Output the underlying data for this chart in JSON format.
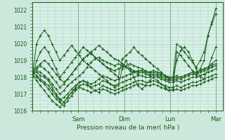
{
  "xlabel": "Pression niveau de la mer( hPa )",
  "bg_color": "#cce8dc",
  "plot_bg_color": "#d8f0e8",
  "line_color": "#1a5e1a",
  "grid_color": "#a8ccb8",
  "ylim": [
    1016.0,
    1022.5
  ],
  "xlim": [
    0,
    1.04
  ],
  "yticks": [
    1016,
    1017,
    1018,
    1019,
    1020,
    1021,
    1022
  ],
  "day_labels": [
    "Sam",
    "Dim",
    "Lun",
    "Mar"
  ],
  "day_positions": [
    0.25,
    0.5,
    0.75,
    1.0
  ],
  "num_points": 48,
  "series": [
    [
      1018.2,
      1018.3,
      1018.1,
      1018.0,
      1017.8,
      1017.4,
      1017.0,
      1016.7,
      1016.5,
      1016.8,
      1017.1,
      1017.3,
      1017.5,
      1017.6,
      1017.5,
      1017.4,
      1017.5,
      1017.6,
      1017.8,
      1017.7,
      1017.6,
      1017.5,
      1017.6,
      1017.7,
      1017.8,
      1017.9,
      1018.0,
      1018.1,
      1018.1,
      1018.0,
      1018.0,
      1018.1,
      1018.0,
      1017.9,
      1017.8,
      1017.7,
      1017.7,
      1017.8,
      1017.7,
      1017.8,
      1017.9,
      1018.0,
      1018.0,
      1018.1,
      1018.2,
      1018.3,
      1018.4,
      1018.5
    ],
    [
      1018.1,
      1018.0,
      1017.8,
      1017.6,
      1017.3,
      1017.0,
      1016.7,
      1016.5,
      1016.3,
      1016.6,
      1016.9,
      1017.2,
      1017.4,
      1017.3,
      1017.2,
      1017.1,
      1017.2,
      1017.3,
      1017.5,
      1017.4,
      1017.3,
      1017.2,
      1017.3,
      1017.4,
      1017.5,
      1017.6,
      1017.7,
      1017.8,
      1017.8,
      1017.7,
      1017.7,
      1017.8,
      1017.7,
      1017.6,
      1017.5,
      1017.4,
      1017.4,
      1017.5,
      1017.4,
      1017.5,
      1017.6,
      1017.7,
      1017.7,
      1017.8,
      1017.9,
      1018.0,
      1018.1,
      1018.2
    ],
    [
      1018.3,
      1018.1,
      1017.9,
      1017.7,
      1017.5,
      1017.2,
      1016.9,
      1016.6,
      1016.8,
      1017.0,
      1017.3,
      1017.5,
      1017.7,
      1017.8,
      1017.7,
      1017.6,
      1017.7,
      1017.9,
      1018.1,
      1018.0,
      1017.9,
      1017.8,
      1017.9,
      1018.0,
      1018.1,
      1018.2,
      1018.3,
      1018.4,
      1018.4,
      1018.3,
      1018.3,
      1018.4,
      1018.3,
      1018.2,
      1018.1,
      1018.0,
      1018.0,
      1018.1,
      1018.0,
      1018.1,
      1018.2,
      1018.3,
      1018.3,
      1018.4,
      1018.5,
      1018.6,
      1018.7,
      1018.8
    ],
    [
      1018.2,
      1018.4,
      1018.3,
      1018.1,
      1017.9,
      1017.6,
      1017.3,
      1017.0,
      1017.2,
      1017.5,
      1017.7,
      1017.9,
      1018.1,
      1018.3,
      1018.6,
      1018.9,
      1019.1,
      1019.2,
      1019.0,
      1018.9,
      1018.8,
      1018.7,
      1018.8,
      1018.7,
      1018.6,
      1018.5,
      1018.4,
      1018.3,
      1018.4,
      1018.3,
      1018.2,
      1018.3,
      1018.2,
      1018.1,
      1018.0,
      1017.9,
      1017.9,
      1018.0,
      1017.9,
      1018.0,
      1018.1,
      1018.2,
      1018.2,
      1018.3,
      1018.4,
      1018.5,
      1018.6,
      1018.7
    ],
    [
      1018.4,
      1018.6,
      1018.8,
      1019.0,
      1018.8,
      1018.5,
      1018.2,
      1017.9,
      1017.7,
      1017.9,
      1018.2,
      1018.5,
      1018.8,
      1019.1,
      1019.3,
      1019.5,
      1019.7,
      1019.9,
      1019.7,
      1019.5,
      1019.3,
      1019.1,
      1019.0,
      1018.8,
      1018.6,
      1018.4,
      1018.3,
      1018.2,
      1018.3,
      1018.2,
      1018.1,
      1018.2,
      1018.1,
      1018.0,
      1017.9,
      1017.8,
      1017.8,
      1017.9,
      1018.0,
      1018.1,
      1018.2,
      1018.3,
      1018.3,
      1018.4,
      1018.5,
      1018.6,
      1018.8,
      1019.0
    ],
    [
      1018.3,
      1018.5,
      1018.7,
      1018.5,
      1018.3,
      1018.0,
      1017.7,
      1017.4,
      1017.6,
      1017.9,
      1018.2,
      1018.5,
      1018.8,
      1019.1,
      1019.3,
      1019.5,
      1019.2,
      1019.0,
      1018.8,
      1018.6,
      1018.5,
      1018.4,
      1018.5,
      1018.6,
      1018.7,
      1018.8,
      1018.7,
      1018.6,
      1018.5,
      1018.4,
      1018.3,
      1018.4,
      1018.3,
      1018.2,
      1018.1,
      1018.0,
      1018.0,
      1019.0,
      1019.6,
      1019.8,
      1019.5,
      1019.0,
      1018.5,
      1018.0,
      1017.9,
      1018.5,
      1019.2,
      1019.8
    ],
    [
      1018.1,
      1017.8,
      1017.5,
      1017.2,
      1016.9,
      1016.6,
      1016.4,
      1016.2,
      1016.5,
      1016.8,
      1017.1,
      1017.4,
      1017.7,
      1017.8,
      1017.6,
      1017.4,
      1017.2,
      1017.1,
      1017.3,
      1017.2,
      1017.1,
      1017.0,
      1017.1,
      1017.2,
      1017.3,
      1017.4,
      1017.5,
      1017.6,
      1017.6,
      1017.5,
      1017.5,
      1017.6,
      1017.5,
      1017.4,
      1017.3,
      1017.2,
      1017.2,
      1017.3,
      1017.2,
      1017.3,
      1017.4,
      1017.5,
      1017.5,
      1017.6,
      1017.7,
      1017.8,
      1017.9,
      1018.0
    ],
    [
      1018.0,
      1019.0,
      1019.5,
      1019.8,
      1019.5,
      1019.0,
      1018.5,
      1018.0,
      1018.3,
      1018.6,
      1018.9,
      1019.2,
      1019.5,
      1019.8,
      1019.6,
      1019.4,
      1019.2,
      1019.0,
      1018.8,
      1018.6,
      1018.4,
      1018.2,
      1018.0,
      1019.1,
      1019.3,
      1019.5,
      1019.8,
      1019.5,
      1019.3,
      1019.1,
      1018.9,
      1018.7,
      1018.5,
      1018.3,
      1018.1,
      1017.9,
      1018.0,
      1020.0,
      1019.8,
      1019.5,
      1019.2,
      1018.9,
      1018.6,
      1019.0,
      1019.5,
      1020.5,
      1021.3,
      1022.1
    ],
    [
      1018.2,
      1020.0,
      1020.5,
      1020.8,
      1020.5,
      1020.0,
      1019.5,
      1019.0,
      1019.3,
      1019.6,
      1019.9,
      1019.6,
      1019.3,
      1019.0,
      1018.8,
      1018.6,
      1018.4,
      1018.2,
      1018.0,
      1017.8,
      1017.6,
      1017.4,
      1017.5,
      1018.5,
      1019.0,
      1018.5,
      1018.0,
      1017.5,
      1017.3,
      1017.5,
      1017.8,
      1018.0,
      1017.8,
      1017.6,
      1017.4,
      1017.2,
      1017.3,
      1019.5,
      1019.3,
      1019.0,
      1018.7,
      1018.4,
      1018.1,
      1018.5,
      1019.0,
      1020.5,
      1021.2,
      1021.8
    ]
  ]
}
